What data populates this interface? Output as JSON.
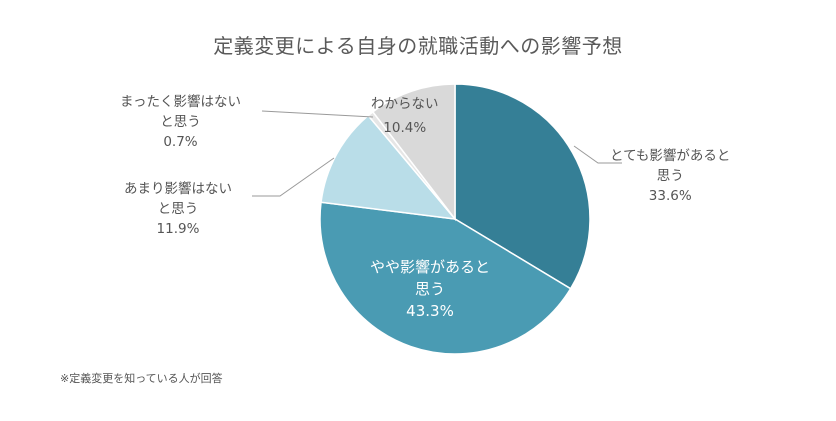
{
  "chart_data": {
    "type": "pie",
    "title": "定義変更による自身の就職活動への影響予想",
    "slices": [
      {
        "label_line1": "とても影響があると",
        "label_line2": "思う",
        "value": 33.6,
        "value_text": "33.6%",
        "color": "#357F96"
      },
      {
        "label_line1": "やや影響があると",
        "label_line2": "思う",
        "value": 43.3,
        "value_text": "43.3%",
        "color": "#4A9BB3"
      },
      {
        "label_line1": "あまり影響はない",
        "label_line2": "と思う",
        "value": 11.9,
        "value_text": "11.9%",
        "color": "#B9DDE8"
      },
      {
        "label_line1": "まったく影響はない",
        "label_line2": "と思う",
        "value": 0.7,
        "value_text": "0.7%",
        "color": "#E6E6E6"
      },
      {
        "label_line1": "わからない",
        "label_line2": "",
        "value": 10.4,
        "value_text": "10.4%",
        "color": "#D9D9D9"
      }
    ],
    "start_angle_deg": 0,
    "direction": "clockwise"
  },
  "footnote": "※定義変更を知っている人が回答"
}
